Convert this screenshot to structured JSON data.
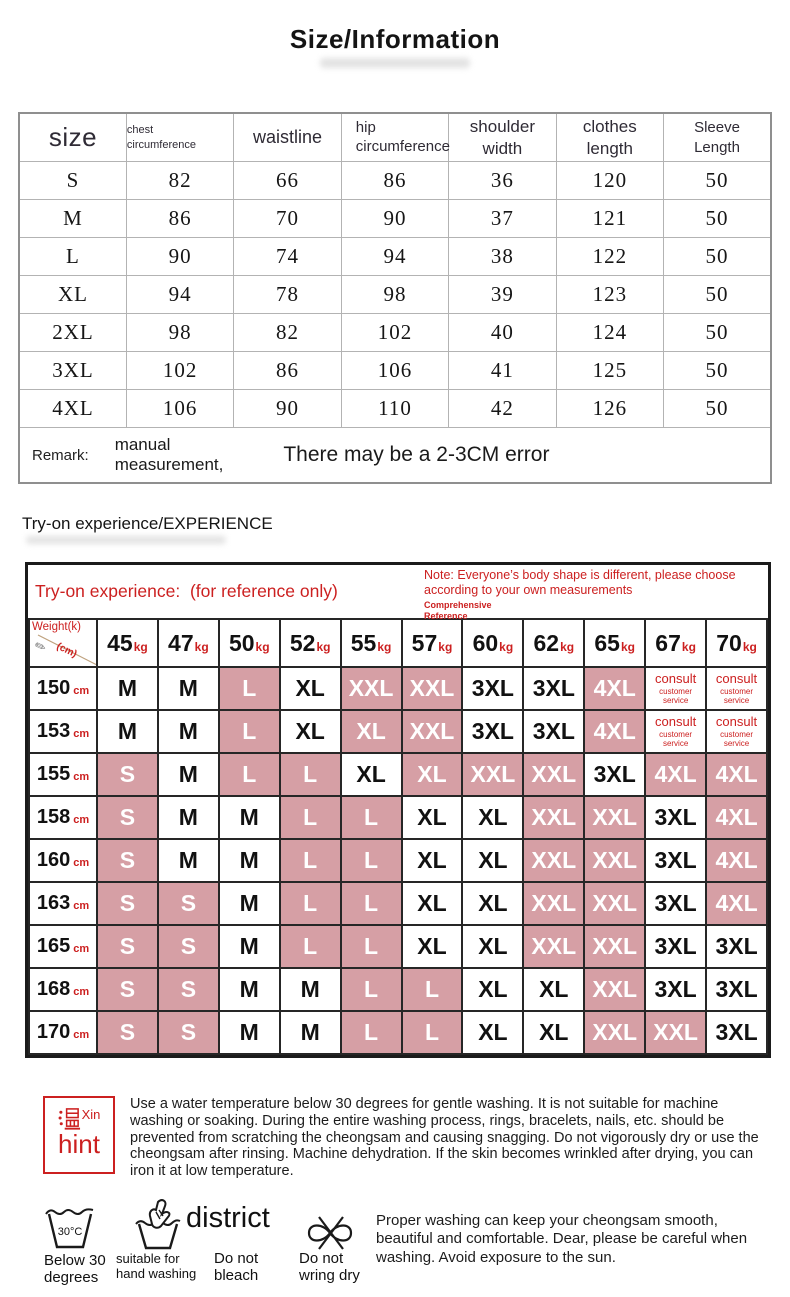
{
  "title": "Size/Information",
  "size_table": {
    "headers": [
      "size",
      "chest\ncircumference",
      "waistline",
      "hip\ncircumference",
      "shoulder\nwidth",
      "clothes\nlength",
      "Sleeve\nLength"
    ],
    "rows": [
      [
        "S",
        "82",
        "66",
        "86",
        "36",
        "120",
        "50"
      ],
      [
        "M",
        "86",
        "70",
        "90",
        "37",
        "121",
        "50"
      ],
      [
        "L",
        "90",
        "74",
        "94",
        "38",
        "122",
        "50"
      ],
      [
        "XL",
        "94",
        "78",
        "98",
        "39",
        "123",
        "50"
      ],
      [
        "2XL",
        "98",
        "82",
        "102",
        "40",
        "124",
        "50"
      ],
      [
        "3XL",
        "102",
        "86",
        "106",
        "41",
        "125",
        "50"
      ],
      [
        "4XL",
        "106",
        "90",
        "110",
        "42",
        "126",
        "50"
      ]
    ],
    "remark": {
      "label": "Remark:",
      "note1": "manual\nmeasurement,",
      "note2": "There may be a 2-3CM error"
    }
  },
  "tryon": {
    "heading": "Try-on experience/EXPERIENCE",
    "table_title": "Try-on experience:",
    "table_title_suffix": "(for reference only)",
    "note": "Note: Everyone’s body shape is different, please choose\naccording to your own measurements",
    "note_sub": "Comprehensive\nReference",
    "corner_weight_label": "Weight(k)",
    "corner_height_unit": "(cm)",
    "weight_unit": "kg",
    "height_unit": "cm",
    "weights": [
      "45",
      "47",
      "50",
      "52",
      "55",
      "57",
      "60",
      "62",
      "65",
      "67",
      "70"
    ],
    "consult": {
      "label": "consult",
      "sub": "customer\nservice"
    },
    "rows": [
      {
        "height": "150",
        "cells": [
          [
            "M",
            0
          ],
          [
            "M",
            0
          ],
          [
            "L",
            1
          ],
          [
            "XL",
            0
          ],
          [
            "XXL",
            1
          ],
          [
            "XXL",
            1
          ],
          [
            "3XL",
            0
          ],
          [
            "3XL",
            0
          ],
          [
            "4XL",
            1
          ],
          [
            "",
            2
          ],
          [
            "",
            2
          ]
        ]
      },
      {
        "height": "153",
        "cells": [
          [
            "M",
            0
          ],
          [
            "M",
            0
          ],
          [
            "L",
            1
          ],
          [
            "XL",
            0
          ],
          [
            "XL",
            1
          ],
          [
            "XXL",
            1
          ],
          [
            "3XL",
            0
          ],
          [
            "3XL",
            0
          ],
          [
            "4XL",
            1
          ],
          [
            "",
            2
          ],
          [
            "",
            2
          ]
        ]
      },
      {
        "height": "155",
        "cells": [
          [
            "S",
            1
          ],
          [
            "M",
            0
          ],
          [
            "L",
            1
          ],
          [
            "L",
            1
          ],
          [
            "XL",
            0
          ],
          [
            "XL",
            1
          ],
          [
            "XXL",
            1
          ],
          [
            "XXL",
            1
          ],
          [
            "3XL",
            0
          ],
          [
            "4XL",
            1
          ],
          [
            "4XL",
            1
          ]
        ]
      },
      {
        "height": "158",
        "cells": [
          [
            "S",
            1
          ],
          [
            "M",
            0
          ],
          [
            "M",
            0
          ],
          [
            "L",
            1
          ],
          [
            "L",
            1
          ],
          [
            "XL",
            0
          ],
          [
            "XL",
            0
          ],
          [
            "XXL",
            1
          ],
          [
            "XXL",
            1
          ],
          [
            "3XL",
            0
          ],
          [
            "4XL",
            1
          ]
        ]
      },
      {
        "height": "160",
        "cells": [
          [
            "S",
            1
          ],
          [
            "M",
            0
          ],
          [
            "M",
            0
          ],
          [
            "L",
            1
          ],
          [
            "L",
            1
          ],
          [
            "XL",
            0
          ],
          [
            "XL",
            0
          ],
          [
            "XXL",
            1
          ],
          [
            "XXL",
            1
          ],
          [
            "3XL",
            0
          ],
          [
            "4XL",
            1
          ]
        ]
      },
      {
        "height": "163",
        "cells": [
          [
            "S",
            1
          ],
          [
            "S",
            1
          ],
          [
            "M",
            0
          ],
          [
            "L",
            1
          ],
          [
            "L",
            1
          ],
          [
            "XL",
            0
          ],
          [
            "XL",
            0
          ],
          [
            "XXL",
            1
          ],
          [
            "XXL",
            1
          ],
          [
            "3XL",
            0
          ],
          [
            "4XL",
            1
          ]
        ]
      },
      {
        "height": "165",
        "cells": [
          [
            "S",
            1
          ],
          [
            "S",
            1
          ],
          [
            "M",
            0
          ],
          [
            "L",
            1
          ],
          [
            "L",
            1
          ],
          [
            "XL",
            0
          ],
          [
            "XL",
            0
          ],
          [
            "XXL",
            1
          ],
          [
            "XXL",
            1
          ],
          [
            "3XL",
            0
          ],
          [
            "3XL",
            0
          ]
        ]
      },
      {
        "height": "168",
        "cells": [
          [
            "S",
            1
          ],
          [
            "S",
            1
          ],
          [
            "M",
            0
          ],
          [
            "M",
            0
          ],
          [
            "L",
            1
          ],
          [
            "L",
            1
          ],
          [
            "XL",
            0
          ],
          [
            "XL",
            0
          ],
          [
            "XXL",
            1
          ],
          [
            "3XL",
            0
          ],
          [
            "3XL",
            0
          ]
        ]
      },
      {
        "height": "170",
        "cells": [
          [
            "S",
            1
          ],
          [
            "S",
            1
          ],
          [
            "M",
            0
          ],
          [
            "M",
            0
          ],
          [
            "L",
            1
          ],
          [
            "L",
            1
          ],
          [
            "XL",
            0
          ],
          [
            "XL",
            0
          ],
          [
            "XXL",
            1
          ],
          [
            "XXL",
            1
          ],
          [
            "3XL",
            0
          ]
        ]
      }
    ]
  },
  "hint": {
    "icon_char": "温",
    "icon_xin": "Xin",
    "icon_word": "hint",
    "text": "Use a water temperature below 30 degrees for gentle washing. It is not suitable for machine washing or soaking. During the entire washing process, rings, bracelets, nails, etc. should be prevented from scratching the cheongsam and causing snagging. Do not vigorously dry or use the cheongsam after rinsing. Machine dehydration. If the skin becomes wrinkled after drying, you can iron it at low temperature."
  },
  "care": {
    "basin_temp": "30°C",
    "below30_label": "Below 30\ndegrees",
    "handwash_label": "suitable for\nhand washing",
    "district_text": "district",
    "bleach_label": "Do not\nbleach",
    "wring_label": "Do not\nwring dry",
    "note": "Proper washing can keep your cheongsam smooth,\nbeautiful and comfortable. Dear, please be careful when\nwashing. Avoid exposure to the sun."
  },
  "colors": {
    "red": "#cc2020",
    "pink": "#d69fa5",
    "border_dark": "#262626",
    "border_light": "#b3b3b3"
  }
}
